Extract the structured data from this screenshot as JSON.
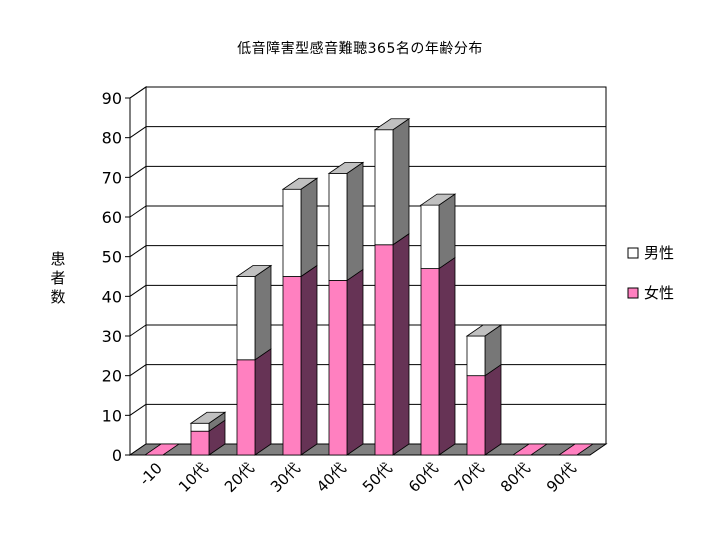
{
  "chart_data": {
    "type": "bar",
    "stacked": true,
    "three_d": true,
    "title": "低音障害型感音難聴365名の年齢分布",
    "ylabel": "患者数",
    "xlabel": "",
    "ylim": [
      0,
      90
    ],
    "yticks": [
      0,
      10,
      20,
      30,
      40,
      50,
      60,
      70,
      80,
      90
    ],
    "grid": true,
    "legend_position": "right",
    "categories": [
      "-10",
      "10代",
      "20代",
      "30代",
      "40代",
      "50代",
      "60代",
      "70代",
      "80代",
      "90代"
    ],
    "series": [
      {
        "name": "女性",
        "values": [
          0,
          6,
          24,
          45,
          44,
          53,
          47,
          20,
          0,
          0
        ]
      },
      {
        "name": "男性",
        "values": [
          0,
          2,
          21,
          22,
          27,
          29,
          16,
          10,
          0,
          0
        ]
      }
    ],
    "legend": [
      {
        "label": "男性",
        "color": "#ffffff"
      },
      {
        "label": "女性",
        "color": "#ff80c0"
      }
    ],
    "colors": {
      "female_front": "#ff80c0",
      "female_side": "#663355",
      "male_front": "#ffffff",
      "male_side": "#777777",
      "top_face": "#c0c0c0",
      "floor": "#808080"
    }
  }
}
